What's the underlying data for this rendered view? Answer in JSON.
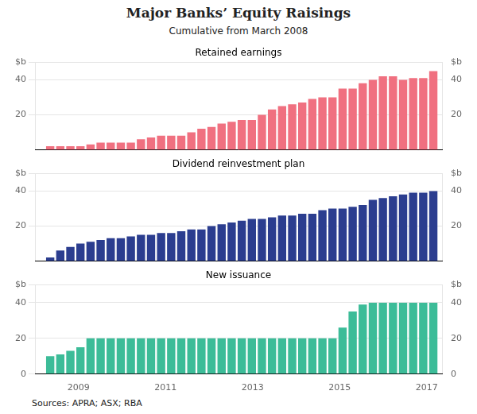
{
  "chart_data": [
    {
      "type": "bar",
      "title": "Major Banks’ Equity Raisings",
      "subtitle": "Cumulative from March 2008",
      "x": [
        2008.35,
        2008.581579,
        2008.813158,
        2009.044737,
        2009.276316,
        2009.507895,
        2009.739474,
        2009.971053,
        2010.202632,
        2010.434211,
        2010.665789,
        2010.897368,
        2011.128947,
        2011.360526,
        2011.592105,
        2011.823684,
        2012.055263,
        2012.286842,
        2012.518421,
        2012.75,
        2012.981579,
        2013.213158,
        2013.444737,
        2013.676316,
        2013.907895,
        2014.139474,
        2014.371053,
        2014.602632,
        2014.834211,
        2015.065789,
        2015.297368,
        2015.528947,
        2015.760526,
        2015.992105,
        2016.223684,
        2016.455263,
        2016.686842,
        2016.918421,
        2017.15
      ],
      "series": [
        {
          "name": "Retained earnings",
          "color": "#f07080",
          "values": [
            2,
            2,
            2,
            2,
            3,
            4,
            4,
            4,
            4,
            6,
            7,
            8,
            8,
            8,
            10,
            12,
            13,
            15,
            16,
            17,
            17,
            20,
            23,
            25,
            26,
            27,
            29,
            30,
            30,
            35,
            35,
            38,
            40,
            42,
            42,
            40,
            41,
            41,
            45
          ]
        }
      ],
      "xlim": [
        2008.0,
        2017.35
      ],
      "ylim": [
        0,
        50
      ],
      "yticks": [
        20,
        40,
        {
          "value": 50,
          "label": "$b"
        }
      ],
      "y2lim": [
        0,
        50
      ],
      "y2ticks": [
        20,
        40,
        {
          "value": 50,
          "label": "$b"
        }
      ],
      "grid": true,
      "tick_labels": "y"
    },
    {
      "type": "bar",
      "x": [
        2008.35,
        2008.581579,
        2008.813158,
        2009.044737,
        2009.276316,
        2009.507895,
        2009.739474,
        2009.971053,
        2010.202632,
        2010.434211,
        2010.665789,
        2010.897368,
        2011.128947,
        2011.360526,
        2011.592105,
        2011.823684,
        2012.055263,
        2012.286842,
        2012.518421,
        2012.75,
        2012.981579,
        2013.213158,
        2013.444737,
        2013.676316,
        2013.907895,
        2014.139474,
        2014.371053,
        2014.602632,
        2014.834211,
        2015.065789,
        2015.297368,
        2015.528947,
        2015.760526,
        2015.992105,
        2016.223684,
        2016.455263,
        2016.686842,
        2016.918421,
        2017.15
      ],
      "series": [
        {
          "name": "Dividend reinvestment plan",
          "color": "#2b3d8f",
          "values": [
            2,
            6,
            8,
            10,
            11,
            12,
            13,
            13,
            14,
            15,
            15,
            16,
            16,
            17,
            18,
            18,
            20,
            21,
            22,
            23,
            24,
            24,
            25,
            26,
            26,
            27,
            27,
            29,
            30,
            30,
            31,
            32,
            35,
            36,
            37,
            38,
            39,
            39,
            40
          ]
        }
      ],
      "xlim": [
        2008.0,
        2017.35
      ],
      "ylim": [
        0,
        50
      ],
      "yticks": [
        20,
        40,
        {
          "value": 50,
          "label": "$b"
        }
      ],
      "y2lim": [
        0,
        50
      ],
      "y2ticks": [
        20,
        40,
        {
          "value": 50,
          "label": "$b"
        }
      ],
      "grid": true,
      "tick_labels": "y"
    },
    {
      "type": "bar",
      "x": [
        2008.35,
        2008.581579,
        2008.813158,
        2009.044737,
        2009.276316,
        2009.507895,
        2009.739474,
        2009.971053,
        2010.202632,
        2010.434211,
        2010.665789,
        2010.897368,
        2011.128947,
        2011.360526,
        2011.592105,
        2011.823684,
        2012.055263,
        2012.286842,
        2012.518421,
        2012.75,
        2012.981579,
        2013.213158,
        2013.444737,
        2013.676316,
        2013.907895,
        2014.139474,
        2014.371053,
        2014.602632,
        2014.834211,
        2015.065789,
        2015.297368,
        2015.528947,
        2015.760526,
        2015.992105,
        2016.223684,
        2016.455263,
        2016.686842,
        2016.918421,
        2017.15
      ],
      "series": [
        {
          "name": "New issuance",
          "color": "#3cbc98",
          "values": [
            10,
            11,
            13,
            15,
            20,
            20,
            20,
            20,
            20,
            20,
            20,
            20,
            20,
            20,
            20,
            20,
            20,
            20,
            20,
            20,
            20,
            20,
            20,
            20,
            20,
            20,
            20,
            20,
            20,
            26,
            35,
            39,
            40,
            40,
            40,
            40,
            40,
            40,
            40
          ]
        }
      ],
      "xlim": [
        2008.0,
        2017.35
      ],
      "xticks": [
        2009,
        2011,
        2013,
        2015,
        2017
      ],
      "ylim": [
        0,
        50
      ],
      "yticks": [
        0,
        20,
        40,
        {
          "value": 50,
          "label": "$b"
        }
      ],
      "y2lim": [
        0,
        50
      ],
      "y2ticks": [
        0,
        20,
        40,
        {
          "value": 50,
          "label": "$b"
        }
      ],
      "grid": true,
      "annotations": [
        "Sources: APRA; ASX; RBA"
      ]
    }
  ]
}
